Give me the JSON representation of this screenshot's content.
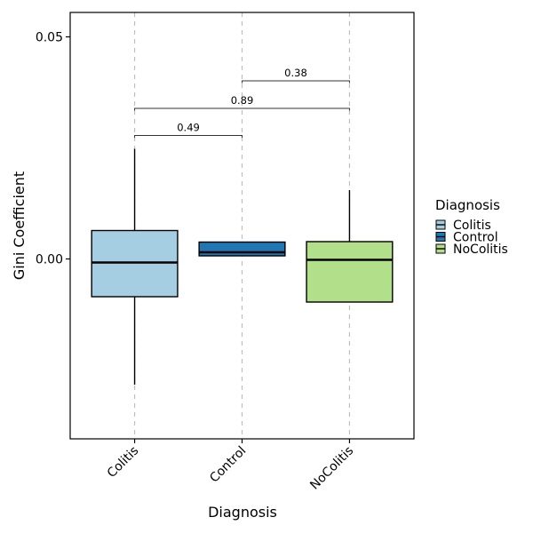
{
  "chart_data": {
    "type": "boxplot",
    "xlabel": "Diagnosis",
    "ylabel": "Gini Coefficient",
    "categories": [
      "Colitis",
      "Control",
      "NoColitis"
    ],
    "ylim": [
      -0.0405,
      0.0555
    ],
    "yticks": [
      0.0,
      0.05
    ],
    "ytick_labels": [
      "0.00",
      "0.05"
    ],
    "grid": "vertical dashed at categories",
    "legend": {
      "title": "Diagnosis",
      "position": "right",
      "entries": [
        {
          "label": "Colitis",
          "color": "#a6cee3"
        },
        {
          "label": "Control",
          "color": "#1f78b4"
        },
        {
          "label": "NoColitis",
          "color": "#b2df8a"
        }
      ]
    },
    "boxes": [
      {
        "category": "Colitis",
        "whisker_low": -0.0283,
        "q1": -0.0085,
        "median": -0.0008,
        "q3": 0.0064,
        "whisker_high": 0.0248
      },
      {
        "category": "Control",
        "whisker_low": 0.0007,
        "q1": 0.0007,
        "median": 0.0015,
        "q3": 0.0038,
        "whisker_high": 0.0038
      },
      {
        "category": "NoColitis",
        "whisker_low": -0.0097,
        "q1": -0.0097,
        "median": -0.0002,
        "q3": 0.0039,
        "whisker_high": 0.0155
      }
    ],
    "comparisons": [
      {
        "from": "Colitis",
        "to": "Control",
        "label": "0.49",
        "y": 0.0278,
        "tip": 0.0273
      },
      {
        "from": "Colitis",
        "to": "NoColitis",
        "label": "0.89",
        "y": 0.0339,
        "tip": 0.0334
      },
      {
        "from": "Control",
        "to": "NoColitis",
        "label": "0.38",
        "y": 0.0401,
        "tip": 0.0396
      }
    ]
  }
}
